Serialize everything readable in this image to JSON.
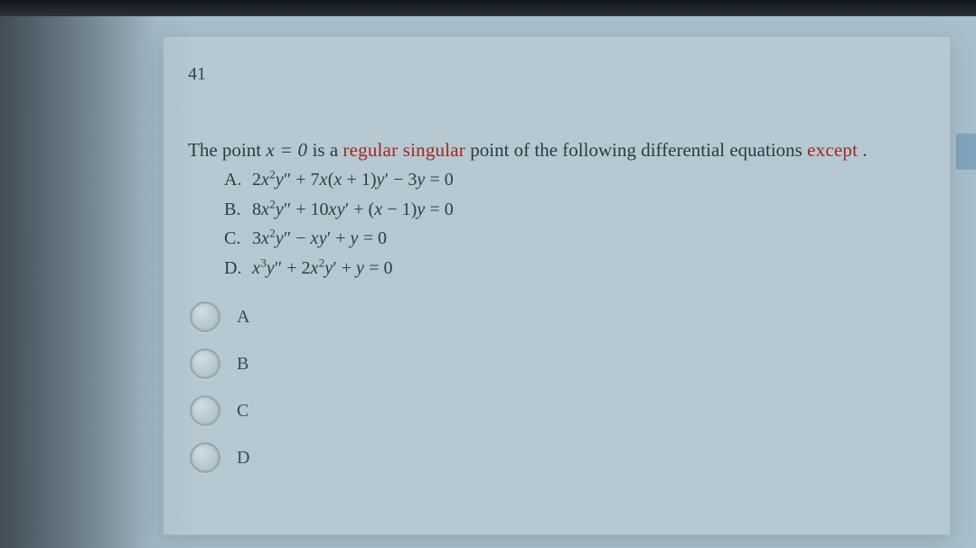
{
  "colors": {
    "page_bg": "#2a3038",
    "screen_bg": "#a9c0cc",
    "panel_bg": "#b6c9d2",
    "text": "#2c3b42",
    "keyword": "#a2281f",
    "radio_border": "#96a6ad"
  },
  "typography": {
    "body_family": "Times New Roman",
    "body_size_pt": 15,
    "math_italic": true
  },
  "question": {
    "number": "41",
    "prompt_prefix": "The point ",
    "prompt_point": "x = 0",
    "prompt_segment_is": " is a ",
    "prompt_keyword": "regular singular",
    "prompt_segment_mid": " point of the following differential equations ",
    "prompt_except": "except",
    "prompt_suffix": ".",
    "choices": [
      {
        "label": "A.",
        "equation_html": "2<span class='math'>x</span><sup>2</sup><span class='math'>y</span><span class='prime'>″</span> + 7<span class='math'>x</span>(<span class='math'>x</span> + 1)<span class='math'>y</span><span class='prime'>′</span> − 3<span class='math'>y</span> = 0"
      },
      {
        "label": "B.",
        "equation_html": "8<span class='math'>x</span><sup>2</sup><span class='math'>y</span><span class='prime'>″</span> + 10<span class='math'>x</span><span class='math'>y</span><span class='prime'>′</span> + (<span class='math'>x</span> − 1)<span class='math'>y</span> = 0"
      },
      {
        "label": "C.",
        "equation_html": "3<span class='math'>x</span><sup>2</sup><span class='math'>y</span><span class='prime'>″</span> − <span class='math'>x</span><span class='math'>y</span><span class='prime'>′</span> + <span class='math'>y</span> = 0"
      },
      {
        "label": "D.",
        "equation_html": "<span class='math'>x</span><sup>3</sup><span class='math'>y</span><span class='prime'>″</span> + 2<span class='math'>x</span><sup>2</sup><span class='math'>y</span><span class='prime'>′</span> + <span class='math'>y</span> = 0"
      }
    ],
    "options": [
      {
        "value": "A",
        "label": "A"
      },
      {
        "value": "B",
        "label": "B"
      },
      {
        "value": "C",
        "label": "C"
      },
      {
        "value": "D",
        "label": "D"
      }
    ]
  }
}
